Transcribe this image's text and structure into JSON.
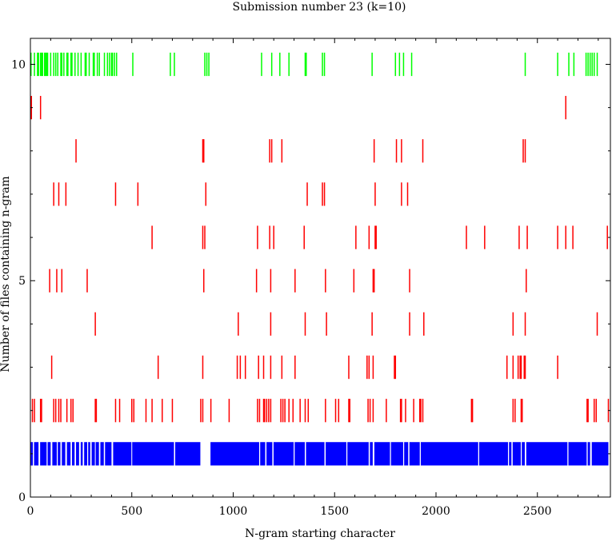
{
  "chart_data": {
    "type": "scatter",
    "title": "Submission number 23 (k=10)",
    "xlabel": "N-gram starting character",
    "ylabel": "Number of files containing n-gram",
    "xlim": [
      0,
      2860
    ],
    "ylim": [
      0,
      10.6
    ],
    "x_ticks": [
      0,
      500,
      1000,
      1500,
      2000,
      2500
    ],
    "y_ticks": [
      0,
      5,
      10
    ],
    "grid": false,
    "colors": {
      "k1": "#0000ff",
      "middle": "#ff0000",
      "k10": "#00ff00"
    },
    "mark_half_height": 0.27,
    "rows": [
      {
        "level": 1,
        "color": "#0000ff",
        "ranges": [
          [
            0,
            12
          ],
          [
            18,
            40
          ],
          [
            48,
            80
          ],
          [
            85,
            100
          ],
          [
            108,
            130
          ],
          [
            135,
            148
          ],
          [
            155,
            172
          ],
          [
            180,
            198
          ],
          [
            205,
            218
          ],
          [
            225,
            240
          ],
          [
            248,
            258
          ],
          [
            265,
            280
          ],
          [
            285,
            295
          ],
          [
            302,
            318
          ],
          [
            322,
            338
          ],
          [
            345,
            362
          ],
          [
            368,
            400
          ],
          [
            408,
            498
          ],
          [
            502,
            708
          ],
          [
            714,
            838
          ],
          [
            888,
            1128
          ],
          [
            1133,
            1158
          ],
          [
            1164,
            1193
          ],
          [
            1199,
            1298
          ],
          [
            1303,
            1353
          ],
          [
            1359,
            1450
          ],
          [
            1456,
            1558
          ],
          [
            1563,
            1668
          ],
          [
            1674,
            1688
          ],
          [
            1696,
            1773
          ],
          [
            1778,
            1838
          ],
          [
            1843,
            1863
          ],
          [
            1869,
            1920
          ],
          [
            1925,
            2208
          ],
          [
            2213,
            2355
          ],
          [
            2360,
            2372
          ],
          [
            2378,
            2418
          ],
          [
            2423,
            2438
          ],
          [
            2445,
            2648
          ],
          [
            2653,
            2743
          ],
          [
            2748,
            2760
          ],
          [
            2768,
            2850
          ]
        ]
      },
      {
        "level": 2,
        "color": "#ff0000",
        "x": [
          10,
          20,
          50,
          55,
          115,
          125,
          140,
          150,
          180,
          200,
          210,
          320,
          325,
          420,
          440,
          500,
          510,
          570,
          600,
          650,
          700,
          840,
          850,
          890,
          980,
          1120,
          1130,
          1150,
          1155,
          1165,
          1175,
          1185,
          1235,
          1245,
          1255,
          1275,
          1295,
          1330,
          1355,
          1370,
          1455,
          1505,
          1520,
          1570,
          1575,
          1665,
          1675,
          1690,
          1755,
          1825,
          1830,
          1850,
          1890,
          1920,
          1925,
          1935,
          2175,
          2180,
          2380,
          2390,
          2420,
          2425,
          2745,
          2750,
          2780,
          2790,
          2850
        ]
      },
      {
        "level": 3,
        "color": "#ff0000",
        "x": [
          105,
          630,
          850,
          1020,
          1035,
          1060,
          1125,
          1150,
          1185,
          1240,
          1305,
          1570,
          1660,
          1670,
          1690,
          1795,
          1800,
          2350,
          2380,
          2405,
          2415,
          2420,
          2435,
          2440,
          2600
        ]
      },
      {
        "level": 4,
        "color": "#ff0000",
        "x": [
          320,
          1025,
          1185,
          1355,
          1460,
          1685,
          1870,
          1940,
          2380,
          2440,
          2795
        ]
      },
      {
        "level": 5,
        "color": "#ff0000",
        "x": [
          95,
          130,
          155,
          280,
          855,
          1115,
          1185,
          1305,
          1455,
          1595,
          1690,
          1695,
          1870,
          2445
        ]
      },
      {
        "level": 6,
        "color": "#ff0000",
        "x": [
          600,
          850,
          860,
          1120,
          1180,
          1200,
          1350,
          1605,
          1670,
          1700,
          1705,
          2150,
          2240,
          2410,
          2450,
          2600,
          2640,
          2675,
          2845
        ]
      },
      {
        "level": 7,
        "color": "#ff0000",
        "x": [
          115,
          140,
          175,
          420,
          530,
          865,
          1365,
          1440,
          1450,
          1700,
          1830,
          1860
        ]
      },
      {
        "level": 8,
        "color": "#ff0000",
        "x": [
          225,
          850,
          855,
          1180,
          1190,
          1240,
          1695,
          1805,
          1830,
          1935,
          2430,
          2440
        ]
      },
      {
        "level": 9,
        "color": "#ff0000",
        "x": [
          5,
          50,
          2640
        ]
      },
      {
        "level": 10,
        "color": "#00ff00",
        "ranges": [
          [
            0,
            3
          ]
        ],
        "x": [
          20,
          35,
          40,
          50,
          55,
          60,
          70,
          75,
          80,
          85,
          100,
          115,
          125,
          135,
          150,
          155,
          165,
          180,
          185,
          200,
          205,
          220,
          235,
          250,
          270,
          275,
          290,
          310,
          315,
          330,
          340,
          365,
          380,
          390,
          400,
          405,
          415,
          425,
          505,
          690,
          710,
          860,
          870,
          880,
          1140,
          1190,
          1230,
          1275,
          1355,
          1360,
          1440,
          1450,
          1685,
          1800,
          1820,
          1840,
          1880,
          2440,
          2600,
          2655,
          2680,
          2740,
          2750,
          2760,
          2770,
          2780,
          2795
        ]
      }
    ]
  }
}
